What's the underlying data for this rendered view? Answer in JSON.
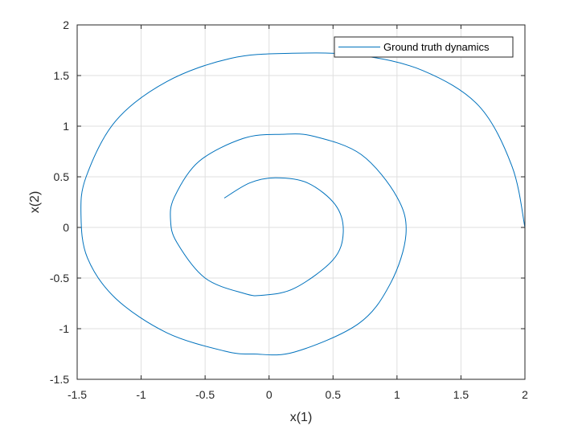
{
  "chart_data": {
    "type": "line",
    "title": "",
    "xlabel": "x(1)",
    "ylabel": "x(2)",
    "xlim": [
      -1.5,
      2
    ],
    "ylim": [
      -1.5,
      2
    ],
    "xticks": [
      -1.5,
      -1,
      -0.5,
      0,
      0.5,
      1,
      1.5,
      2
    ],
    "yticks": [
      -1.5,
      -1,
      -0.5,
      0,
      0.5,
      1,
      1.5,
      2
    ],
    "xtick_labels": [
      "-1.5",
      "-1",
      "-0.5",
      "0",
      "0.5",
      "1",
      "1.5",
      "2"
    ],
    "ytick_labels": [
      "-1.5",
      "-1",
      "-0.5",
      "0",
      "0.5",
      "1",
      "1.5",
      "2"
    ],
    "grid": true,
    "legend": {
      "position": "top-right",
      "entries": [
        "Ground truth dynamics"
      ]
    },
    "series": [
      {
        "name": "Ground truth dynamics",
        "color": "#0072BD",
        "points": [
          [
            2.0,
            0.0
          ],
          [
            1.9,
            0.6
          ],
          [
            1.64,
            1.2
          ],
          [
            1.2,
            1.55
          ],
          [
            0.7,
            1.7
          ],
          [
            0.18,
            1.72
          ],
          [
            -0.3,
            1.67
          ],
          [
            -0.8,
            1.44
          ],
          [
            -1.2,
            1.05
          ],
          [
            -1.43,
            0.5
          ],
          [
            -1.47,
            0.12
          ],
          [
            -1.42,
            -0.3
          ],
          [
            -1.2,
            -0.7
          ],
          [
            -0.8,
            -1.04
          ],
          [
            -0.35,
            -1.22
          ],
          [
            -0.12,
            -1.25
          ],
          [
            0.2,
            -1.23
          ],
          [
            0.7,
            -0.95
          ],
          [
            0.95,
            -0.55
          ],
          [
            1.07,
            -0.07
          ],
          [
            1.0,
            0.3
          ],
          [
            0.72,
            0.72
          ],
          [
            0.35,
            0.9
          ],
          [
            0.1,
            0.92
          ],
          [
            -0.2,
            0.88
          ],
          [
            -0.55,
            0.65
          ],
          [
            -0.74,
            0.3
          ],
          [
            -0.77,
            0.07
          ],
          [
            -0.72,
            -0.15
          ],
          [
            -0.5,
            -0.5
          ],
          [
            -0.2,
            -0.65
          ],
          [
            -0.05,
            -0.67
          ],
          [
            0.2,
            -0.6
          ],
          [
            0.5,
            -0.32
          ],
          [
            0.58,
            -0.05
          ],
          [
            0.52,
            0.22
          ],
          [
            0.3,
            0.44
          ],
          [
            0.05,
            0.49
          ],
          [
            -0.15,
            0.44
          ],
          [
            -0.35,
            0.29
          ]
        ]
      }
    ]
  }
}
